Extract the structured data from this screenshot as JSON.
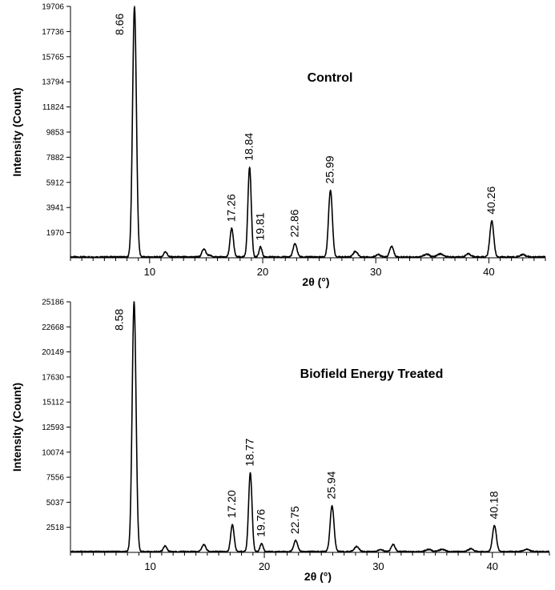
{
  "chart_data": [
    {
      "type": "line",
      "title": "Control",
      "xlabel": "2θ (°)",
      "ylabel": "Intensity (Count)",
      "xlim": [
        3,
        45
      ],
      "ylim": [
        0,
        19706
      ],
      "yticks": [
        1970,
        3941,
        5912,
        7882,
        9853,
        11824,
        13794,
        15765,
        17736,
        19706
      ],
      "xticks": [
        10,
        20,
        30,
        40
      ],
      "grid": false,
      "baseline": 60,
      "peaks": [
        {
          "x": 8.66,
          "y": 19706,
          "label": "8.66",
          "width": 0.17
        },
        {
          "x": 11.4,
          "y": 480,
          "label": "",
          "width": 0.15
        },
        {
          "x": 14.8,
          "y": 700,
          "label": "",
          "width": 0.17
        },
        {
          "x": 15.3,
          "y": 200,
          "label": "",
          "width": 0.15
        },
        {
          "x": 17.26,
          "y": 2300,
          "label": "17.26",
          "width": 0.15
        },
        {
          "x": 18.84,
          "y": 7100,
          "label": "18.84",
          "width": 0.15
        },
        {
          "x": 19.81,
          "y": 850,
          "label": "19.81",
          "width": 0.13
        },
        {
          "x": 22.86,
          "y": 1100,
          "label": "22.86",
          "width": 0.17
        },
        {
          "x": 25.99,
          "y": 5300,
          "label": "25.99",
          "width": 0.17
        },
        {
          "x": 28.2,
          "y": 500,
          "label": "",
          "width": 0.2
        },
        {
          "x": 30.2,
          "y": 250,
          "label": "",
          "width": 0.2
        },
        {
          "x": 31.4,
          "y": 900,
          "label": "",
          "width": 0.17
        },
        {
          "x": 34.5,
          "y": 280,
          "label": "",
          "width": 0.25
        },
        {
          "x": 35.7,
          "y": 300,
          "label": "",
          "width": 0.25
        },
        {
          "x": 38.2,
          "y": 300,
          "label": "",
          "width": 0.22
        },
        {
          "x": 40.26,
          "y": 2900,
          "label": "40.26",
          "width": 0.17
        },
        {
          "x": 43.0,
          "y": 250,
          "label": "",
          "width": 0.25
        }
      ]
    },
    {
      "type": "line",
      "title": "Biofield Energy Treated",
      "xlabel": "2θ (°)",
      "ylabel": "Intensity (Count)",
      "xlim": [
        3,
        45
      ],
      "ylim": [
        0,
        25186
      ],
      "yticks": [
        2518,
        5037,
        7556,
        10074,
        12593,
        15112,
        17630,
        20149,
        22668,
        25186
      ],
      "xticks": [
        10,
        20,
        30,
        40
      ],
      "grid": false,
      "baseline": 80,
      "peaks": [
        {
          "x": 8.58,
          "y": 25186,
          "label": "8.58",
          "width": 0.17
        },
        {
          "x": 11.3,
          "y": 650,
          "label": "",
          "width": 0.15
        },
        {
          "x": 14.7,
          "y": 800,
          "label": "",
          "width": 0.17
        },
        {
          "x": 17.2,
          "y": 2800,
          "label": "17.20",
          "width": 0.15
        },
        {
          "x": 18.77,
          "y": 8000,
          "label": "18.77",
          "width": 0.15
        },
        {
          "x": 19.76,
          "y": 900,
          "label": "19.76",
          "width": 0.13
        },
        {
          "x": 22.75,
          "y": 1200,
          "label": "22.75",
          "width": 0.17
        },
        {
          "x": 25.94,
          "y": 4700,
          "label": "25.94",
          "width": 0.17
        },
        {
          "x": 28.1,
          "y": 600,
          "label": "",
          "width": 0.2
        },
        {
          "x": 30.2,
          "y": 300,
          "label": "",
          "width": 0.2
        },
        {
          "x": 31.3,
          "y": 800,
          "label": "",
          "width": 0.17
        },
        {
          "x": 34.4,
          "y": 300,
          "label": "",
          "width": 0.25
        },
        {
          "x": 35.6,
          "y": 300,
          "label": "",
          "width": 0.25
        },
        {
          "x": 38.1,
          "y": 350,
          "label": "",
          "width": 0.22
        },
        {
          "x": 40.18,
          "y": 2700,
          "label": "40.18",
          "width": 0.17
        },
        {
          "x": 43.0,
          "y": 300,
          "label": "",
          "width": 0.25
        }
      ]
    }
  ]
}
